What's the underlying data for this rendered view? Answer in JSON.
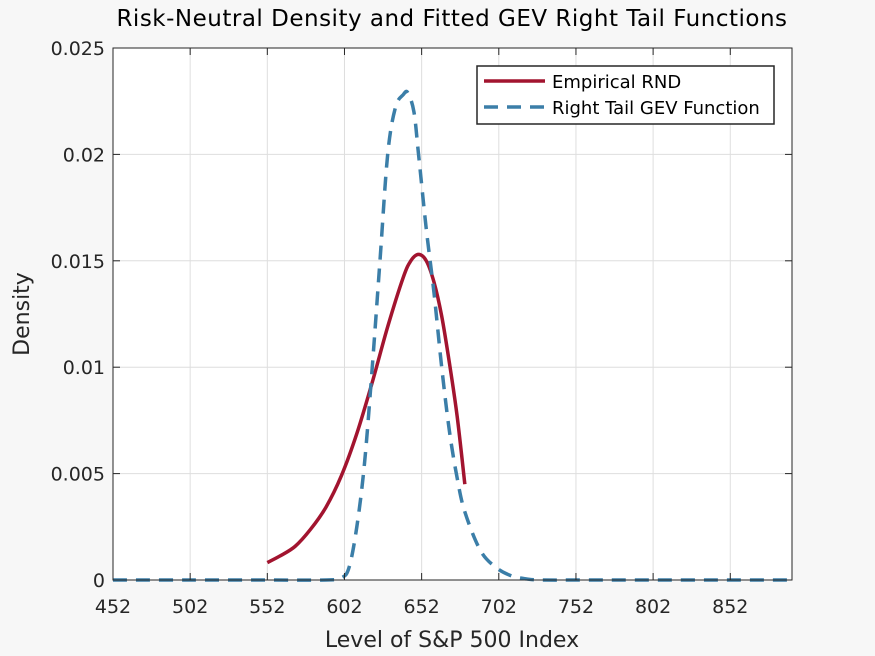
{
  "chart_data": {
    "type": "line",
    "title": "Risk-Neutral Density and Fitted GEV Right Tail Functions",
    "xlabel": "Level of S&P 500 Index",
    "ylabel": "Density",
    "xlim": [
      452,
      892
    ],
    "ylim": [
      0,
      0.025
    ],
    "xticks": [
      452,
      502,
      552,
      602,
      652,
      702,
      752,
      802,
      852
    ],
    "yticks": [
      0,
      0.005,
      0.01,
      0.015,
      0.02,
      0.025
    ],
    "ytick_labels": [
      "0",
      "0.005",
      "0.01",
      "0.015",
      "0.02",
      "0.025"
    ],
    "grid": true,
    "legend_position": "top-right",
    "series": [
      {
        "name": "Empirical RND",
        "color": "#a2142f",
        "style": "solid",
        "x": [
          552,
          560,
          570,
          580,
          590,
          600,
          610,
          620,
          630,
          640,
          645,
          650,
          655,
          660,
          665,
          670,
          675,
          680
        ],
        "y": [
          0.00082,
          0.00112,
          0.00158,
          0.00238,
          0.00342,
          0.0049,
          0.00688,
          0.00929,
          0.0119,
          0.0142,
          0.015,
          0.0153,
          0.015,
          0.014,
          0.0124,
          0.0102,
          0.0077,
          0.0045
        ]
      },
      {
        "name": "Right Tail GEV Function",
        "color": "#3b7ea8",
        "style": "dashed",
        "x": [
          452,
          500,
          550,
          590,
          600,
          605,
          610,
          615,
          620,
          625,
          630,
          635,
          640,
          643,
          647,
          650,
          655,
          660,
          665,
          670,
          675,
          680,
          690,
          700,
          710,
          720,
          730,
          760,
          800,
          850,
          892
        ],
        "y": [
          0,
          0,
          0,
          0,
          0.0001,
          0.0006,
          0.0025,
          0.0055,
          0.01,
          0.015,
          0.02,
          0.0222,
          0.0228,
          0.0229,
          0.022,
          0.02,
          0.0165,
          0.0135,
          0.01,
          0.007,
          0.0048,
          0.0032,
          0.0014,
          0.0006,
          0.0002,
          5e-05,
          0,
          0,
          0,
          0,
          0
        ]
      }
    ]
  }
}
